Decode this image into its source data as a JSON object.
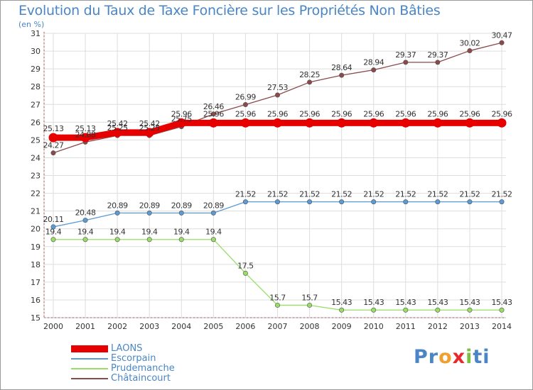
{
  "header": {
    "title": "Evolution du Taux de Taxe Foncière sur les Propriétés Non Bâties",
    "unit_label": "(en %)"
  },
  "logo": {
    "parts": [
      "Pr",
      "o",
      "x",
      "i",
      "ti"
    ],
    "colors": [
      "#4a86c5",
      "#f0a030",
      "#e8282b",
      "#7ac143",
      "#4a86c5"
    ]
  },
  "colors": {
    "axis": "#d00000",
    "grid": "#dddddd",
    "label_text": "#333333"
  },
  "chart_data": {
    "type": "line",
    "title": "Evolution du Taux de Taxe Foncière sur les Propriétés Non Bâties",
    "ylabel": "(en %)",
    "xlabel": "",
    "ylim": [
      15,
      31
    ],
    "yticks": [
      15,
      16,
      17,
      18,
      19,
      20,
      21,
      22,
      23,
      24,
      25,
      26,
      27,
      28,
      29,
      30,
      31
    ],
    "categories": [
      "2000",
      "2001",
      "2002",
      "2003",
      "2004",
      "2005",
      "2006",
      "2007",
      "2008",
      "2009",
      "2010",
      "2011",
      "2012",
      "2013",
      "2014"
    ],
    "grid": true,
    "legend": "bottom-left",
    "series": [
      {
        "name": "LAONS",
        "color": "#e60000",
        "thick": true,
        "values": [
          25.13,
          25.13,
          25.42,
          25.42,
          25.96,
          25.96,
          25.96,
          25.96,
          25.96,
          25.96,
          25.96,
          25.96,
          25.96,
          25.96,
          25.96
        ],
        "labels": [
          "25.13",
          "25.13",
          "25.42",
          "25.42",
          "25.96",
          "25.96",
          "25.96",
          "25.96",
          "25.96",
          "25.96",
          "25.96",
          "25.96",
          "25.96",
          "25.96",
          "25.96"
        ]
      },
      {
        "name": "Escorpain",
        "color": "#5b9bd5",
        "values": [
          20.11,
          20.48,
          20.89,
          20.89,
          20.89,
          20.89,
          21.52,
          21.52,
          21.52,
          21.52,
          21.52,
          21.52,
          21.52,
          21.52,
          21.52
        ],
        "labels": [
          "20.11",
          "20.48",
          "20.89",
          "20.89",
          "20.89",
          "20.89",
          "21.52",
          "21.52",
          "21.52",
          "21.52",
          "21.52",
          "21.52",
          "21.52",
          "21.52",
          "21.52"
        ]
      },
      {
        "name": "Prudemanche",
        "color": "#99dd66",
        "values": [
          19.4,
          19.4,
          19.4,
          19.4,
          19.4,
          19.4,
          17.5,
          15.7,
          15.7,
          15.43,
          15.43,
          15.43,
          15.43,
          15.43,
          15.43
        ],
        "labels": [
          "19.4",
          "19.4",
          "19.4",
          "19.4",
          "19.4",
          "19.4",
          "17.5",
          "15.7",
          "15.7",
          "15.43",
          "15.43",
          "15.43",
          "15.43",
          "15.43",
          "15.43"
        ]
      },
      {
        "name": "Châtaincourt",
        "color": "#8b4a4a",
        "values": [
          24.27,
          24.88,
          25.25,
          25.25,
          25.75,
          26.46,
          26.99,
          27.53,
          28.25,
          28.64,
          28.94,
          29.37,
          29.37,
          30.02,
          30.47
        ],
        "labels": [
          "24.27",
          "24.88",
          "25.25",
          "25.25",
          "25.75",
          "26.46",
          "26.99",
          "27.53",
          "28.25",
          "28.64",
          "28.94",
          "29.37",
          "29.37",
          "30.02",
          "30.47"
        ]
      }
    ]
  }
}
